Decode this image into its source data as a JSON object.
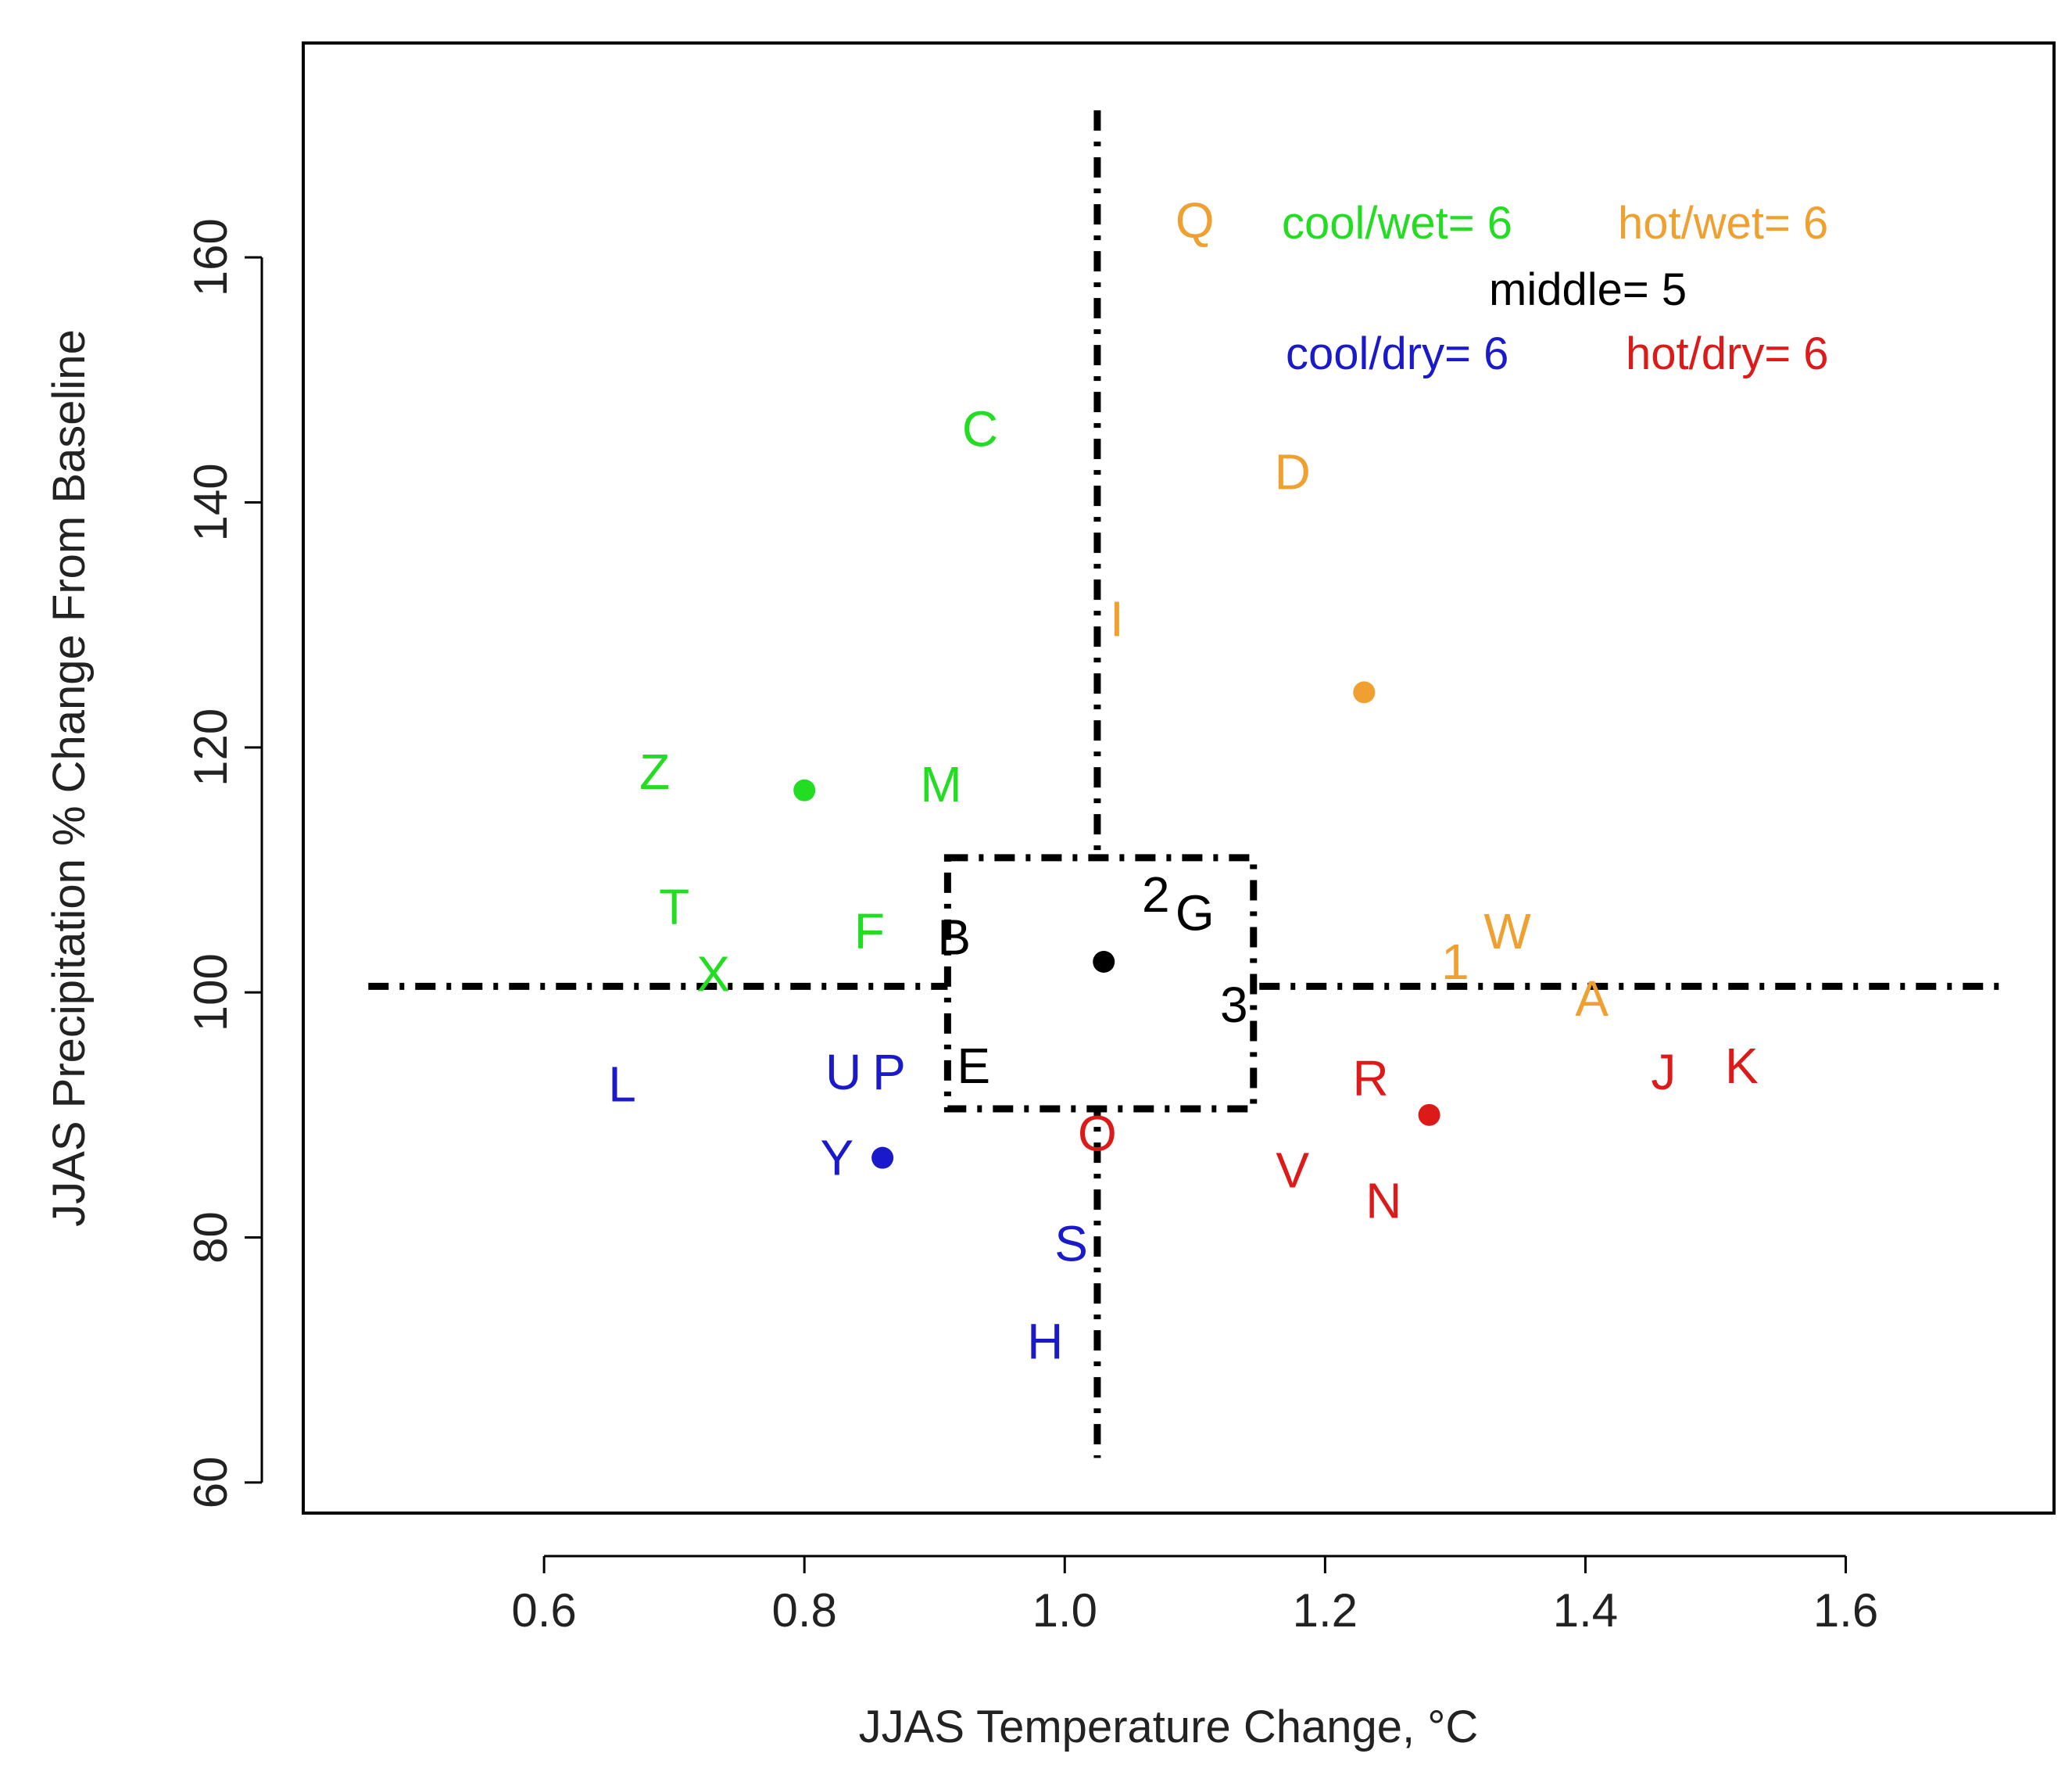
{
  "chart_data": {
    "type": "scatter",
    "xlabel": "JJAS Temperature Change, °C",
    "ylabel": "JJAS Precipitation % Change From Baseline",
    "xlim": [
      0.415,
      1.76
    ],
    "ylim": [
      57.5,
      177.5
    ],
    "x_ticks": [
      0.6,
      0.8,
      1.0,
      1.2,
      1.4,
      1.6
    ],
    "x_tick_labels": [
      "0.6",
      "0.8",
      "1.0",
      "1.2",
      "1.4",
      "1.6"
    ],
    "y_ticks": [
      60,
      80,
      100,
      120,
      140,
      160
    ],
    "y_tick_labels": [
      "60",
      "80",
      "100",
      "120",
      "140",
      "160"
    ],
    "colors": {
      "cool_wet": "#22dd22",
      "hot_wet": "#f0a030",
      "middle": "#000000",
      "cool_dry": "#1a1acc",
      "hot_dry": "#dd1a1a"
    },
    "legend": [
      {
        "text": "cool/wet= 6",
        "group": "cool_wet"
      },
      {
        "text": "hot/wet= 6",
        "group": "hot_wet"
      },
      {
        "text": "middle= 5",
        "group": "middle"
      },
      {
        "text": "cool/dry= 6",
        "group": "cool_dry"
      },
      {
        "text": "hot/dry= 6",
        "group": "hot_dry"
      }
    ],
    "reference_lines": {
      "vertical_x": 1.025,
      "vertical_y_range": [
        62,
        172
      ],
      "horizontal_y": 100.5,
      "horizontal_x_range": [
        0.465,
        1.725
      ]
    },
    "middle_box": {
      "x": [
        0.91,
        1.145
      ],
      "y": [
        90.5,
        111
      ]
    },
    "centroids": [
      {
        "group": "cool_wet",
        "x": 0.8,
        "y": 116.5
      },
      {
        "group": "hot_wet",
        "x": 1.23,
        "y": 124.5
      },
      {
        "group": "middle",
        "x": 1.03,
        "y": 102.5
      },
      {
        "group": "cool_dry",
        "x": 0.86,
        "y": 86.5
      },
      {
        "group": "hot_dry",
        "x": 1.28,
        "y": 90.0
      }
    ],
    "points": [
      {
        "label": "C",
        "group": "cool_wet",
        "x": 0.935,
        "y": 146
      },
      {
        "label": "Z",
        "group": "cool_wet",
        "x": 0.685,
        "y": 118
      },
      {
        "label": "M",
        "group": "cool_wet",
        "x": 0.905,
        "y": 117
      },
      {
        "label": "T",
        "group": "cool_wet",
        "x": 0.7,
        "y": 107
      },
      {
        "label": "F",
        "group": "cool_wet",
        "x": 0.85,
        "y": 105
      },
      {
        "label": "X",
        "group": "cool_wet",
        "x": 0.73,
        "y": 101.5
      },
      {
        "label": "Q",
        "group": "hot_wet",
        "x": 1.1,
        "y": 163
      },
      {
        "label": "D",
        "group": "hot_wet",
        "x": 1.175,
        "y": 142.5
      },
      {
        "label": "I",
        "group": "hot_wet",
        "x": 1.04,
        "y": 130.5
      },
      {
        "label": "W",
        "group": "hot_wet",
        "x": 1.34,
        "y": 105
      },
      {
        "label": "1",
        "group": "hot_wet",
        "x": 1.3,
        "y": 102.5
      },
      {
        "label": "A",
        "group": "hot_wet",
        "x": 1.405,
        "y": 99.5
      },
      {
        "label": "2",
        "group": "middle",
        "x": 1.07,
        "y": 108
      },
      {
        "label": "G",
        "group": "middle",
        "x": 1.1,
        "y": 106.5
      },
      {
        "label": "B",
        "group": "middle",
        "x": 0.915,
        "y": 104.5
      },
      {
        "label": "3",
        "group": "middle",
        "x": 1.13,
        "y": 99
      },
      {
        "label": "E",
        "group": "middle",
        "x": 0.93,
        "y": 94
      },
      {
        "label": "L",
        "group": "cool_dry",
        "x": 0.66,
        "y": 92.5
      },
      {
        "label": "U",
        "group": "cool_dry",
        "x": 0.83,
        "y": 93.5
      },
      {
        "label": "P",
        "group": "cool_dry",
        "x": 0.865,
        "y": 93.5
      },
      {
        "label": "Y",
        "group": "cool_dry",
        "x": 0.825,
        "y": 86.5
      },
      {
        "label": "S",
        "group": "cool_dry",
        "x": 1.005,
        "y": 79.5
      },
      {
        "label": "H",
        "group": "cool_dry",
        "x": 0.985,
        "y": 71.5
      },
      {
        "label": "O",
        "group": "hot_dry",
        "x": 1.025,
        "y": 88.5
      },
      {
        "label": "V",
        "group": "hot_dry",
        "x": 1.175,
        "y": 85.5
      },
      {
        "label": "R",
        "group": "hot_dry",
        "x": 1.235,
        "y": 93
      },
      {
        "label": "N",
        "group": "hot_dry",
        "x": 1.245,
        "y": 83
      },
      {
        "label": "J",
        "group": "hot_dry",
        "x": 1.46,
        "y": 93.5
      },
      {
        "label": "K",
        "group": "hot_dry",
        "x": 1.52,
        "y": 94
      }
    ]
  }
}
